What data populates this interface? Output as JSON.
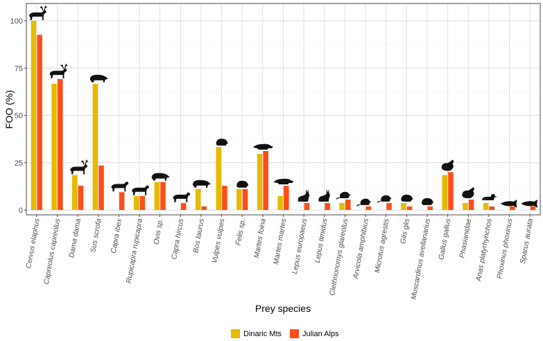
{
  "chart_data": {
    "type": "bar",
    "title": "",
    "xlabel": "Prey species",
    "ylabel": "FOO (%)",
    "ylim": [
      0,
      106
    ],
    "yticks": [
      0,
      25,
      50,
      75,
      100
    ],
    "grid": true,
    "legend_position": "bottom",
    "categories": [
      "Cervus elaphus",
      "Capreolus capreolus",
      "Dama dama",
      "Sus scrofa",
      "Capra ibex",
      "Rupicapra rupicapra",
      "Ovis sp.",
      "Capra hircus",
      "Bos taurus",
      "Vulpes vulpes",
      "Felis sp.",
      "Martes foina",
      "Martes martes",
      "Lepus europaeus",
      "Lepus timidus",
      "Clethrionomys glareolus",
      "Arvicola amphibius",
      "Microtus agrestis",
      "Glis glis",
      "Muscardinus avellanarius",
      "Gallus gallus",
      "Phasianidae",
      "Anas platyrhynchos",
      "Phoxinus phoxinus",
      "Sparus aurata"
    ],
    "series": [
      {
        "name": "Dinaric Mts",
        "color": "#E6BA00",
        "values": [
          100,
          66.7,
          18.5,
          66.7,
          0,
          7.4,
          14.8,
          0,
          11.1,
          33.3,
          11.1,
          29.6,
          7.4,
          0,
          0,
          3.7,
          0,
          0,
          3.7,
          0,
          18.5,
          3.7,
          3.7,
          0,
          0
        ]
      },
      {
        "name": "Julian Alps",
        "color": "#FF4D1A",
        "values": [
          92.6,
          69.2,
          12.8,
          23.5,
          9.4,
          7.4,
          14.8,
          3.7,
          1.9,
          12.8,
          11.1,
          31.2,
          12.8,
          3.7,
          3.7,
          5.5,
          1.9,
          3.7,
          1.9,
          1.9,
          20.0,
          5.5,
          1.9,
          1.9,
          1.9
        ]
      }
    ],
    "icons": [
      "deer-icon",
      "roe-deer-icon",
      "fallow-deer-icon",
      "boar-icon",
      "ibex-icon",
      "chamois-icon",
      "sheep-icon",
      "goat-icon",
      "cow-icon",
      "fox-icon",
      "cat-icon",
      "marten-icon",
      "pine-marten-icon",
      "hare-icon",
      "mountain-hare-icon",
      "vole-icon",
      "water-vole-icon",
      "field-vole-icon",
      "dormouse-icon",
      "hazel-dormouse-icon",
      "chicken-icon",
      "pheasant-icon",
      "duck-icon",
      "minnow-icon",
      "seabream-icon"
    ]
  }
}
